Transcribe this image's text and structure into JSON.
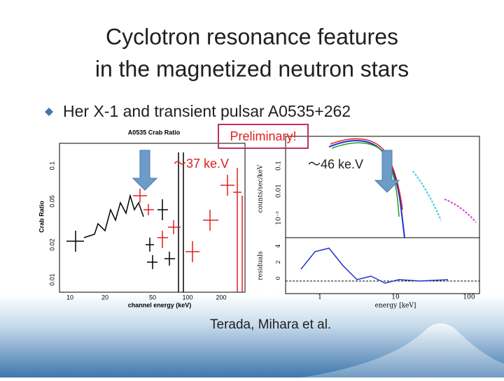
{
  "title": {
    "lines": [
      "Cyclotron resonance features",
      "in the magnetized neutron stars"
    ]
  },
  "bullet": "Her X-1 and transient pulsar A0535+262",
  "stamp": "Preliminary!",
  "left_plot": {
    "title": "A0535 Crab Ratio",
    "y_label": "Crab Ratio",
    "x_label": "channel energy (keV)",
    "y_ticks": [
      "0.1",
      "0.05",
      "0.02",
      "0.01"
    ],
    "x_ticks": [
      "10",
      "20",
      "50",
      "100",
      "200"
    ],
    "annotation": "〜37 ke.V"
  },
  "right_plot": {
    "y_label": "counts/sec/keV",
    "residual_label": "residuals",
    "x_label": "energy [keV]",
    "y_ticks": [
      "0.1",
      "0.01",
      "10⁻³"
    ],
    "residual_ticks": [
      "4",
      "2",
      "0"
    ],
    "x_ticks": [
      "1",
      "10",
      "100"
    ],
    "annotation": "〜46 ke.V"
  },
  "credit": "Terada, Mihara  et al."
}
